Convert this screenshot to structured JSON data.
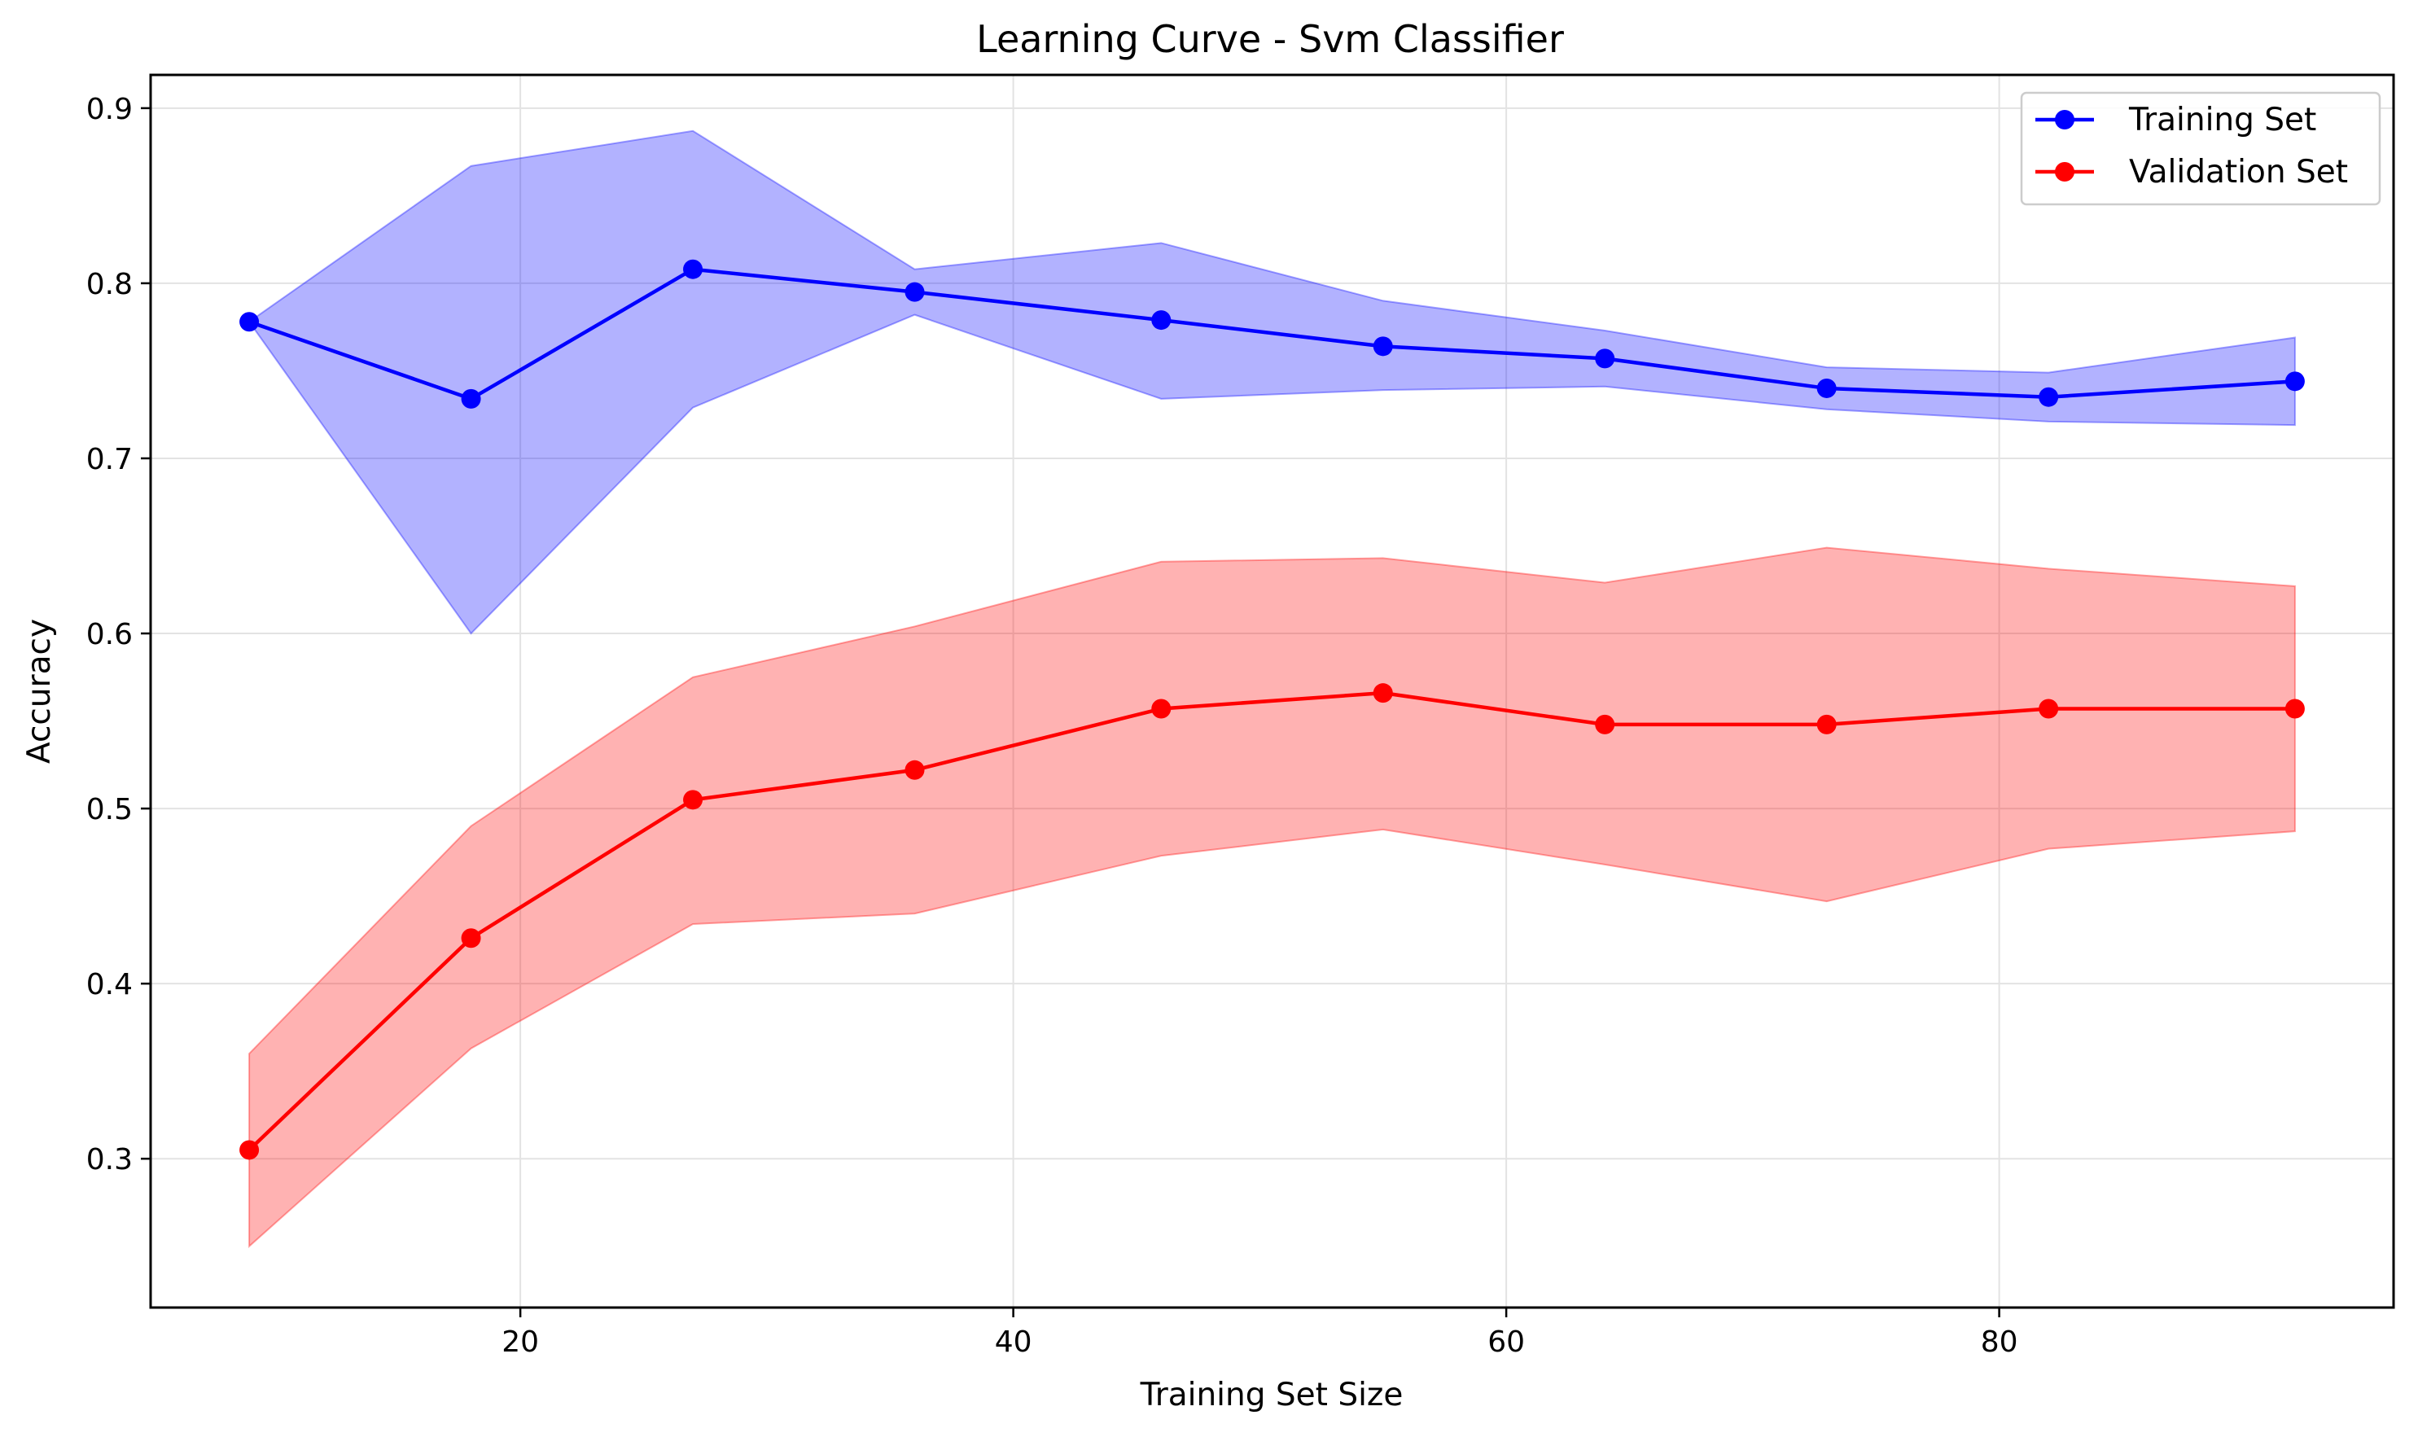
{
  "chart_data": {
    "type": "line",
    "title": "Learning Curve - Svm Classifier",
    "xlabel": "Training Set Size",
    "ylabel": "Accuracy",
    "x": [
      9,
      18,
      27,
      36,
      46,
      55,
      64,
      73,
      82,
      92
    ],
    "xlim": [
      5,
      96
    ],
    "ylim": [
      0.215,
      0.919
    ],
    "xticks": [
      20,
      40,
      60,
      80
    ],
    "yticks": [
      0.3,
      0.4,
      0.5,
      0.6,
      0.7,
      0.8,
      0.9
    ],
    "xtick_labels": [
      "20",
      "40",
      "60",
      "80"
    ],
    "ytick_labels": [
      "0.3",
      "0.4",
      "0.5",
      "0.6",
      "0.7",
      "0.8",
      "0.9"
    ],
    "grid": true,
    "legend_position": "top-right",
    "series": [
      {
        "name": "Training Set",
        "color": "#0000ff",
        "values": [
          0.778,
          0.734,
          0.808,
          0.795,
          0.779,
          0.764,
          0.757,
          0.74,
          0.735,
          0.744
        ],
        "upper": [
          0.778,
          0.867,
          0.887,
          0.808,
          0.823,
          0.79,
          0.773,
          0.752,
          0.749,
          0.769
        ],
        "lower": [
          0.778,
          0.6,
          0.729,
          0.782,
          0.734,
          0.739,
          0.741,
          0.728,
          0.721,
          0.719
        ]
      },
      {
        "name": "Validation Set",
        "color": "#ff0000",
        "values": [
          0.305,
          0.426,
          0.505,
          0.522,
          0.557,
          0.566,
          0.548,
          0.548,
          0.557,
          0.557
        ],
        "upper": [
          0.36,
          0.49,
          0.575,
          0.604,
          0.641,
          0.643,
          0.629,
          0.649,
          0.637,
          0.627
        ],
        "lower": [
          0.25,
          0.363,
          0.434,
          0.44,
          0.473,
          0.488,
          0.468,
          0.447,
          0.477,
          0.487
        ]
      }
    ]
  }
}
